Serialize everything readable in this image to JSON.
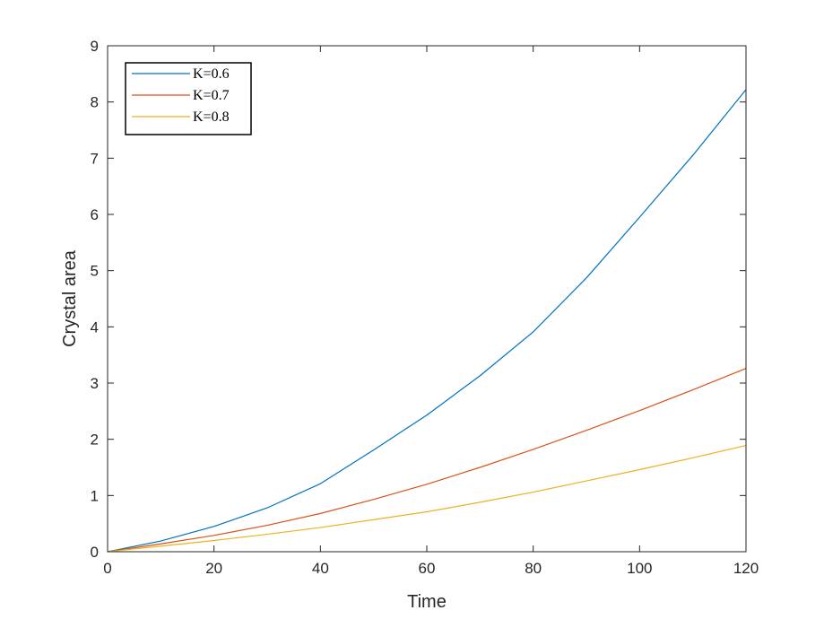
{
  "chart_data": {
    "type": "line",
    "title": "",
    "xlabel": "Time",
    "ylabel": "Crystal area",
    "xlim": [
      0,
      120
    ],
    "ylim": [
      0,
      9
    ],
    "xticks": [
      0,
      20,
      40,
      60,
      80,
      100,
      120
    ],
    "yticks": [
      0,
      1,
      2,
      3,
      4,
      5,
      6,
      7,
      8,
      9
    ],
    "grid": false,
    "legend_position": "top-left",
    "x": [
      0,
      10,
      20,
      30,
      40,
      50,
      60,
      70,
      80,
      90,
      100,
      110,
      120
    ],
    "series": [
      {
        "name": "K=0.6",
        "color": "#0072BD",
        "values": [
          0,
          0.19,
          0.45,
          0.78,
          1.21,
          1.81,
          2.43,
          3.13,
          3.91,
          4.87,
          5.95,
          7.05,
          8.22
        ]
      },
      {
        "name": "K=0.7",
        "color": "#D95319",
        "values": [
          0,
          0.14,
          0.29,
          0.47,
          0.68,
          0.93,
          1.2,
          1.5,
          1.82,
          2.16,
          2.51,
          2.88,
          3.26
        ]
      },
      {
        "name": "K=0.8",
        "color": "#EDB120",
        "values": [
          0,
          0.1,
          0.2,
          0.31,
          0.43,
          0.57,
          0.71,
          0.88,
          1.06,
          1.26,
          1.46,
          1.67,
          1.89
        ]
      }
    ]
  }
}
